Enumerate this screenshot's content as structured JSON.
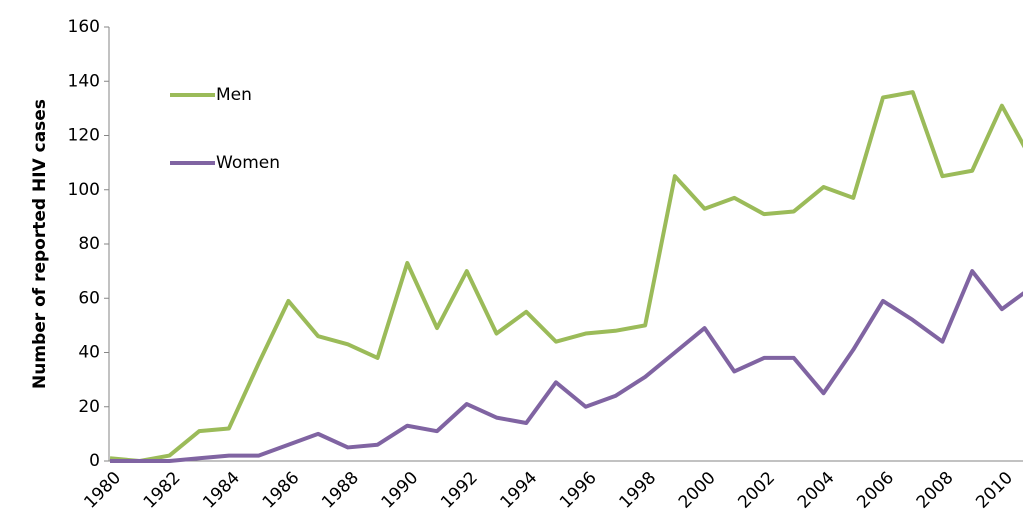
{
  "chart_data": {
    "type": "line",
    "y_label": "Number of reported HIV cases",
    "categories": [
      "1980",
      null,
      "1982",
      null,
      "1984",
      null,
      "1986",
      null,
      "1988",
      null,
      "1990",
      null,
      "1992",
      null,
      "1994",
      null,
      "1996",
      null,
      "1998",
      null,
      "2000",
      null,
      "2002",
      null,
      "2004",
      null,
      "2006",
      null,
      "2008",
      null,
      "2010",
      null
    ],
    "series": [
      {
        "name": "Men",
        "color": "#9bbb59",
        "values": [
          1,
          0,
          2,
          11,
          12,
          36,
          59,
          46,
          43,
          38,
          73,
          49,
          70,
          47,
          55,
          44,
          47,
          48,
          50,
          105,
          93,
          97,
          91,
          92,
          101,
          97,
          134,
          136,
          105,
          107,
          131,
          111
        ]
      },
      {
        "name": "Women",
        "color": "#8064a2",
        "values": [
          0,
          0,
          0,
          1,
          2,
          2,
          6,
          10,
          5,
          6,
          13,
          11,
          21,
          16,
          14,
          29,
          20,
          24,
          31,
          40,
          49,
          33,
          38,
          38,
          25,
          41,
          59,
          52,
          44,
          70,
          56,
          64
        ]
      }
    ],
    "ylim": [
      0,
      160
    ],
    "yticks": [
      0,
      20,
      40,
      60,
      80,
      100,
      120,
      140,
      160
    ]
  }
}
